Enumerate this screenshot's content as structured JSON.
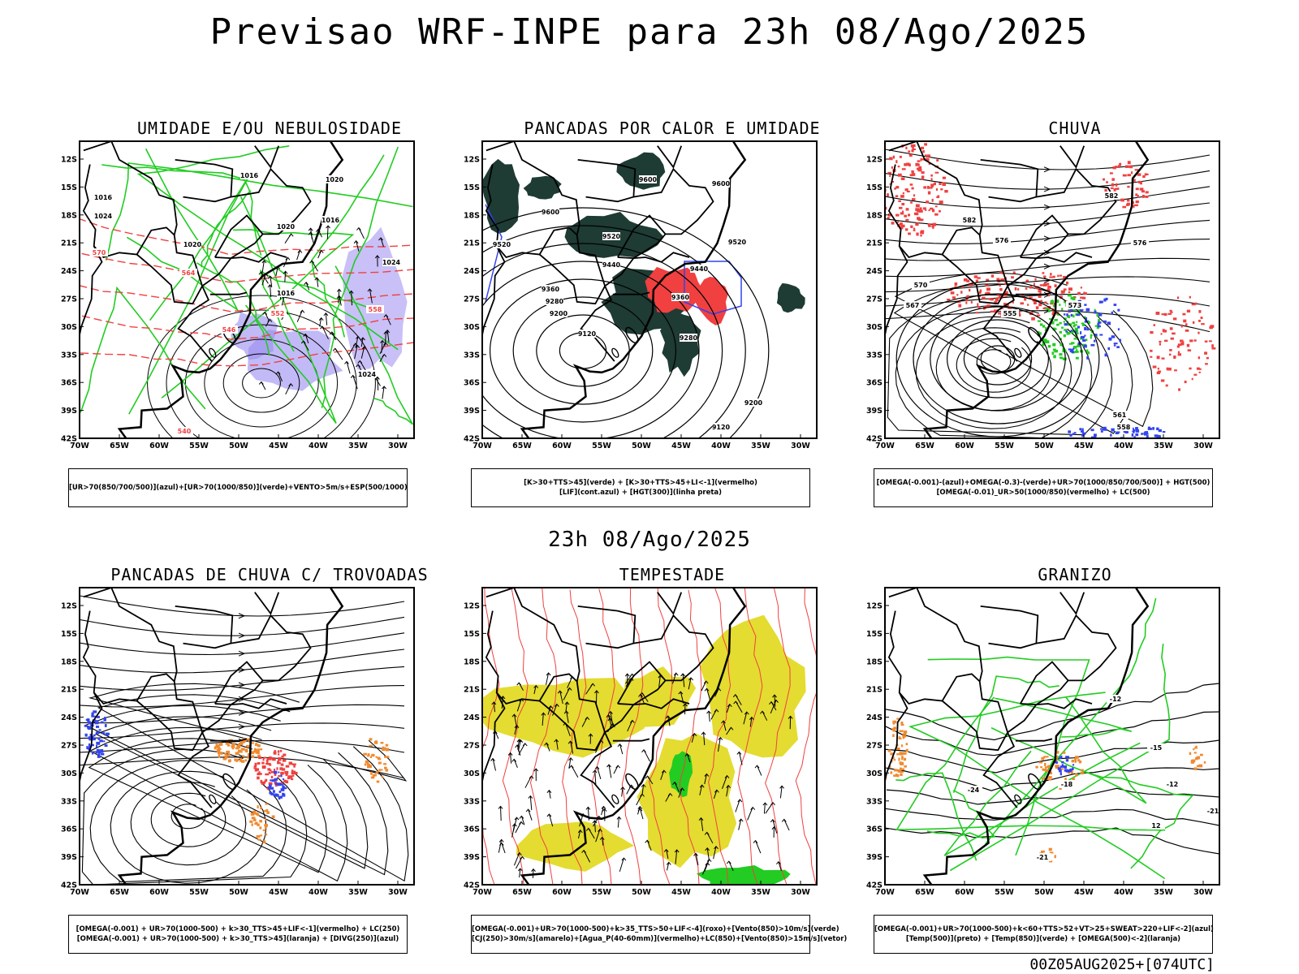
{
  "main_title": "Previsao WRF-INPE  para 23h 08/Ago/2025",
  "mid_title": "23h 08/Ago/2025",
  "footer": "00Z05AUG2025+[074UTC]",
  "lat_labels": [
    "12S",
    "15S",
    "18S",
    "21S",
    "24S",
    "27S",
    "30S",
    "33S",
    "36S",
    "39S",
    "42S"
  ],
  "lon_labels": [
    "70W",
    "65W",
    "60W",
    "55W",
    "50W",
    "45W",
    "40W",
    "35W",
    "30W"
  ],
  "colors": {
    "red": "#f04040",
    "green": "#22cc22",
    "blue": "#3344ee",
    "purple": "#9a8cf0",
    "darkgreen": "#1e3b34",
    "yellow": "#e4dc30",
    "orange": "#f08a30"
  },
  "panels": [
    {
      "title": "UMIDADE E/OU NEBULOSIDADE",
      "legend": [
        "[UR>70(850/700/500)](azul)+[UR>70(1000/850)](verde)+VENTO>5m/s+ESP(500/1000)"
      ]
    },
    {
      "title": "PANCADAS POR CALOR E UMIDADE",
      "legend": [
        "[K>30+TTS>45](verde) + [K>30+TTS>45+LI<-1](vermelho)",
        "[LIF](cont.azul) + [HGT(300)](linha preta)"
      ]
    },
    {
      "title": "CHUVA",
      "legend": [
        "[OMEGA(-0.001)-(azul)+OMEGA(-0.3)-(verde)+UR>70(1000/850/700/500)] + HGT(500)",
        "[OMEGA(-0.01)_UR>50(1000/850)(vermelho) + LC(500)"
      ]
    },
    {
      "title": "PANCADAS DE CHUVA C/ TROVOADAS",
      "legend": [
        "[OMEGA(-0.001) + UR>70(1000-500) + k>30_TTS>45+LIF<-1](vermelho) + LC(250)",
        "[OMEGA(-0.001) + UR>70(1000-500) + k>30_TTS>45](laranja) + [DIVG(250)](azul)"
      ]
    },
    {
      "title": "TEMPESTADE",
      "legend": [
        "[OMEGA(-0.001)+UR>70(1000-500)+k>35_TTS>50+LIF<-4](roxo)+[Vento(850)>10m/s](verde)",
        "[CJ(250)>30m/s](amarelo)+[Agua_P(40-60mm)](vermelho)+LC(850)+[Vento(850)>15m/s](vetor)"
      ]
    },
    {
      "title": "GRANIZO",
      "legend": [
        "[OMEGA(-0.001)+UR>70(1000-500)+k<60+TTS>52+VT>25+SWEAT>220+LIF<-2](azul)",
        "[Temp(500)](preto) + [Temp(850)](verde) + [OMEGA(500)<-2](laranja)"
      ]
    }
  ],
  "contour_labels": {
    "p1": [
      "1016",
      "1016",
      "1020",
      "1020",
      "1016",
      "1024",
      "1024",
      "1016",
      "1020",
      "1024",
      "570",
      "564",
      "552",
      "546",
      "540",
      "558"
    ],
    "p2": [
      "9600",
      "9600",
      "9600",
      "9520",
      "9520",
      "9520",
      "9440",
      "9440",
      "9360",
      "9360",
      "9280",
      "9280",
      "9200",
      "9120",
      "9200",
      "9120"
    ],
    "p3": [
      "582",
      "582",
      "576",
      "576",
      "570",
      "567",
      "555",
      "561",
      "558",
      "573"
    ],
    "p6": [
      "-12",
      "-15",
      "-18",
      "-12",
      "-21",
      "-24",
      "-21",
      "12"
    ]
  }
}
